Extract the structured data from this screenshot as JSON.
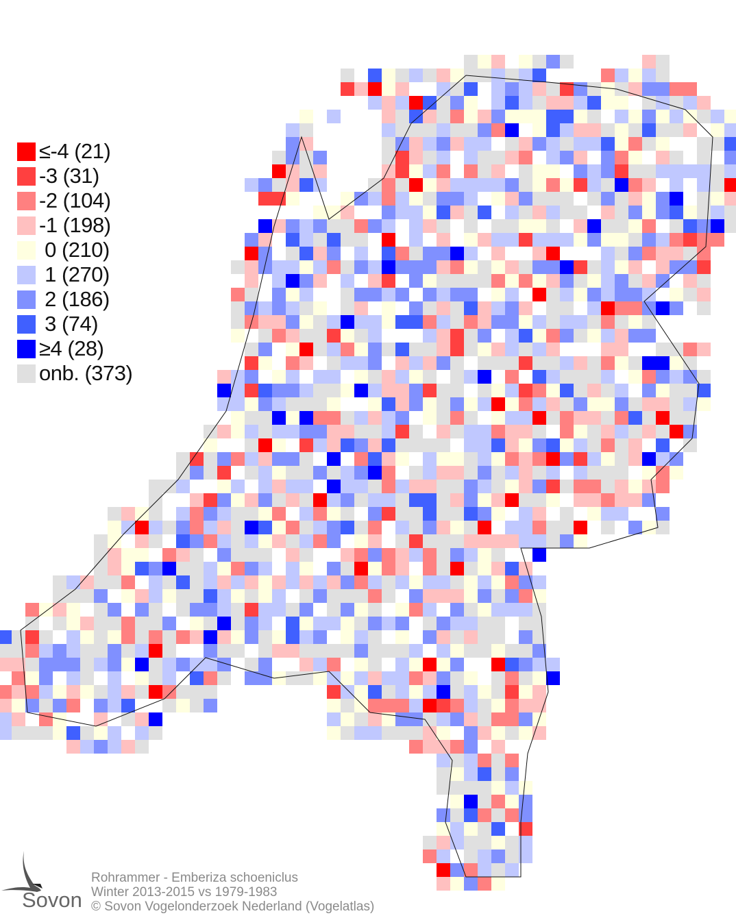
{
  "legend": {
    "items": [
      {
        "label": "≤-4 (21)",
        "color": "#ff0000"
      },
      {
        "label": "-3 (31)",
        "color": "#ff4040"
      },
      {
        "label": "-2 (104)",
        "color": "#ff8080"
      },
      {
        "label": "-1 (198)",
        "color": "#ffc0c0"
      },
      {
        "label": " 0 (210)",
        "color": "#ffffe0"
      },
      {
        "label": " 1 (270)",
        "color": "#c0c8ff"
      },
      {
        "label": " 2 (186)",
        "color": "#8090ff"
      },
      {
        "label": " 3 (74)",
        "color": "#4060ff"
      },
      {
        "label": "≥4 (28)",
        "color": "#0000ff"
      },
      {
        "label": "onb. (373)",
        "color": "#e0e0e0"
      }
    ]
  },
  "credits": {
    "species": "Rohrammer - Emberiza schoeniclus",
    "period": "Winter 2013-2015 vs 1979-1983",
    "copyright": "© Sovon Vogelonderzoek Nederland (Vogelatlas)"
  },
  "logo": {
    "text": "Sovon"
  }
}
